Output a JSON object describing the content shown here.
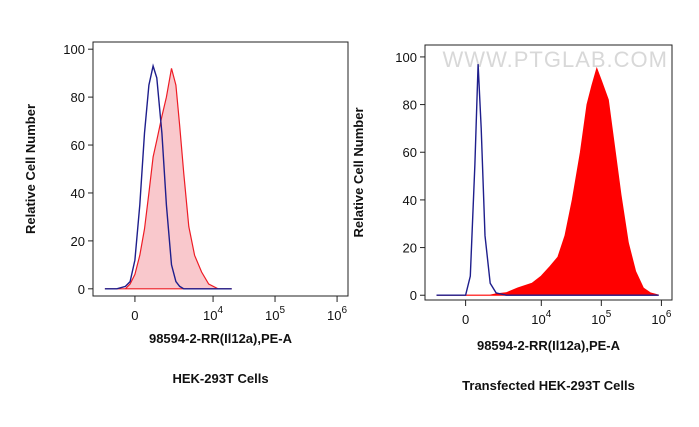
{
  "chart_data": [
    {
      "type": "area",
      "xlabel": "98594-2-RR(Il12a),PE-A",
      "ylabel": "Relative Cell Number",
      "caption": "HEK-293T Cells",
      "xscale": "logicle",
      "xlim": [
        -2500,
        1500000
      ],
      "ylim": [
        -3,
        103
      ],
      "xticks": [
        0,
        {
          "value": 10000,
          "label": "10^4"
        },
        {
          "value": 100000,
          "label": "10^5"
        },
        {
          "value": 1000000,
          "label": "10^6"
        }
      ],
      "yticks": [
        0,
        20,
        40,
        60,
        80,
        100
      ],
      "x": [
        -1500,
        -800,
        -400,
        -200,
        0,
        200,
        400,
        600,
        800,
        1000,
        1300,
        1600,
        2000,
        2400,
        2800,
        3300,
        4000,
        5000,
        6500,
        8500,
        12000,
        20000
      ],
      "series": [
        {
          "color": "#ee1c25",
          "fill": "#f9c8cc",
          "values": [
            0,
            0,
            0,
            2,
            6,
            14,
            25,
            40,
            55,
            62,
            72,
            80,
            92,
            85,
            68,
            48,
            26,
            14,
            7,
            2,
            0,
            0
          ]
        },
        {
          "color": "#1e1e8c",
          "values": [
            0,
            0,
            1,
            3,
            12,
            35,
            65,
            85,
            93,
            88,
            65,
            35,
            10,
            3,
            1,
            0,
            0,
            0,
            0,
            0,
            0,
            0
          ]
        }
      ]
    },
    {
      "type": "area",
      "xlabel": "98594-2-RR(Il12a),PE-A",
      "ylabel": "Relative Cell Number",
      "caption": "Transfected HEK-293T Cells",
      "watermark": "WWW.PTGLAB.COM",
      "xscale": "logicle",
      "xlim": [
        -2500,
        1500000
      ],
      "ylim": [
        -2,
        105
      ],
      "xticks": [
        0,
        {
          "value": 10000,
          "label": "10^4"
        },
        {
          "value": 100000,
          "label": "10^5"
        },
        {
          "value": 1000000,
          "label": "10^6"
        }
      ],
      "yticks": [
        0,
        20,
        40,
        60,
        80,
        100
      ],
      "x": [
        -1500,
        -500,
        0,
        200,
        400,
        550,
        700,
        900,
        1200,
        1600,
        2500,
        4000,
        7000,
        10000,
        14000,
        19000,
        25000,
        33000,
        45000,
        58000,
        70000,
        84000,
        100000,
        130000,
        170000,
        212000,
        280000,
        370000,
        500000,
        650000,
        900000
      ],
      "series": [
        {
          "color": "#ff0000",
          "fill": "#ff0000",
          "values": [
            0,
            0,
            0,
            0,
            0,
            0,
            0,
            0,
            0,
            0.5,
            1,
            3,
            5,
            8,
            12,
            16,
            25,
            40,
            60,
            80,
            88,
            95,
            90,
            82,
            60,
            42,
            22,
            10,
            3,
            1,
            0
          ]
        },
        {
          "color": "#1e1e8c",
          "values": [
            0,
            0,
            0,
            8,
            55,
            97,
            70,
            25,
            5,
            1,
            0,
            0,
            0,
            0,
            0,
            0,
            0,
            0,
            0,
            0,
            0,
            0,
            0,
            0,
            0,
            0,
            0,
            0,
            0,
            0,
            0
          ]
        }
      ]
    }
  ]
}
